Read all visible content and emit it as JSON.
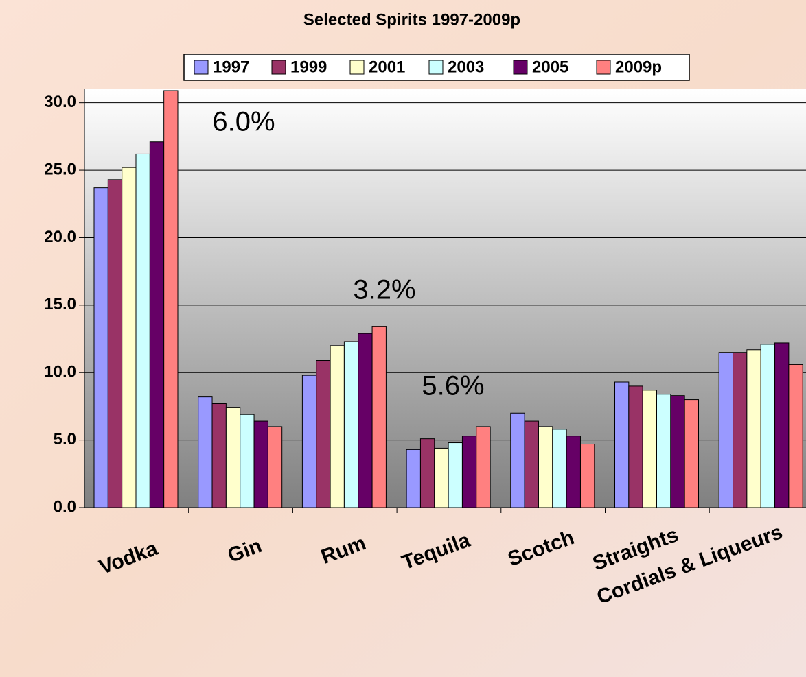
{
  "chart_data": {
    "type": "bar",
    "title": "Selected Spirits 1997-2009p",
    "categories": [
      "Vodka",
      "Gin",
      "Rum",
      "Tequila",
      "Scotch",
      "Straights",
      "Cordials & Liqueurs"
    ],
    "series": [
      {
        "name": "1997",
        "color": "#9999ff",
        "values": [
          23.7,
          8.2,
          9.8,
          4.3,
          7.0,
          9.3,
          11.5
        ]
      },
      {
        "name": "1999",
        "color": "#993366",
        "values": [
          24.3,
          7.7,
          10.9,
          5.1,
          6.4,
          9.0,
          11.5
        ]
      },
      {
        "name": "2001",
        "color": "#ffffcc",
        "values": [
          25.2,
          7.4,
          12.0,
          4.4,
          6.0,
          8.7,
          11.7
        ]
      },
      {
        "name": "2003",
        "color": "#ccffff",
        "values": [
          26.2,
          6.9,
          12.3,
          4.8,
          5.8,
          8.4,
          12.1
        ]
      },
      {
        "name": "2005",
        "color": "#660066",
        "values": [
          27.1,
          6.4,
          12.9,
          5.3,
          5.3,
          8.3,
          12.2
        ]
      },
      {
        "name": "2009p",
        "color": "#ff8080",
        "values": [
          30.9,
          6.0,
          13.4,
          6.0,
          4.7,
          8.0,
          10.6
        ]
      }
    ],
    "annotations": [
      "6.0%",
      "3.2%",
      "5.6%"
    ],
    "ylim": [
      0,
      31
    ],
    "yticks": [
      {
        "value": 0,
        "label": "0.0"
      },
      {
        "value": 5,
        "label": "5.0"
      },
      {
        "value": 10,
        "label": "10.0"
      },
      {
        "value": 15,
        "label": "15.0"
      },
      {
        "value": 20,
        "label": "20.0"
      },
      {
        "value": 25,
        "label": "25.0"
      },
      {
        "value": 30,
        "label": "30.0"
      }
    ],
    "grid": true,
    "legend": "top"
  }
}
